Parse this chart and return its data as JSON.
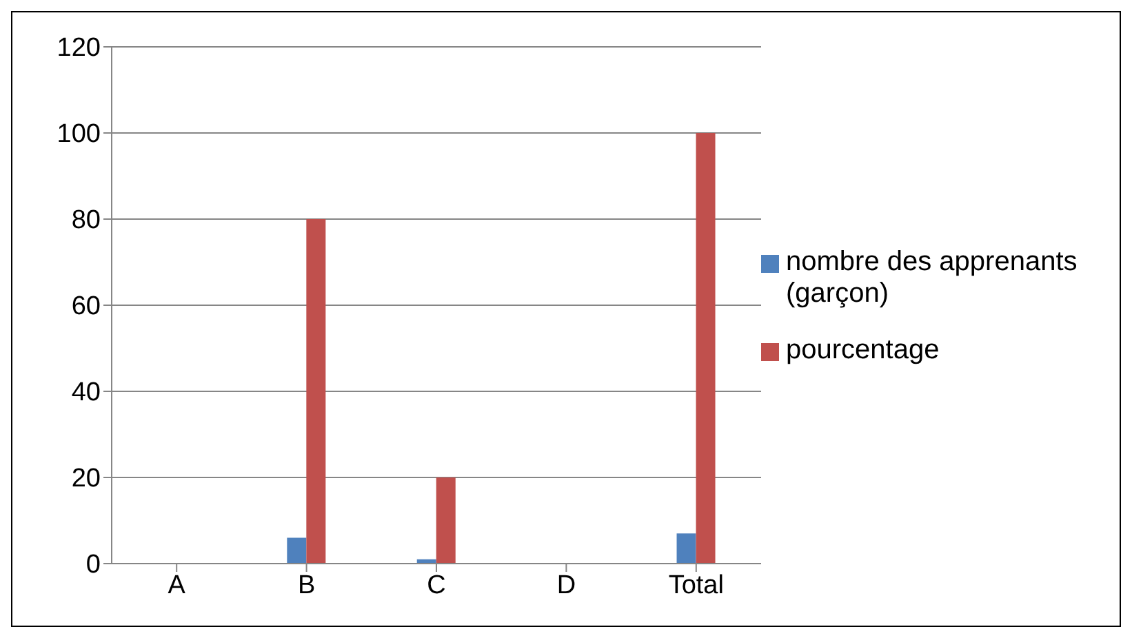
{
  "chart_data": {
    "type": "bar",
    "categories": [
      "A",
      "B",
      "C",
      "D",
      "Total"
    ],
    "series": [
      {
        "name": "nombre des apprenants (garçon)",
        "color": "#4f81bd",
        "values": [
          0,
          6,
          1,
          0,
          7
        ]
      },
      {
        "name": "pourcentage",
        "color": "#c0504d",
        "values": [
          0,
          80,
          20,
          0,
          100
        ]
      }
    ],
    "ylim": [
      0,
      120
    ],
    "yticks": [
      0,
      20,
      40,
      60,
      80,
      100,
      120
    ],
    "grid": "y",
    "legend": "right"
  }
}
